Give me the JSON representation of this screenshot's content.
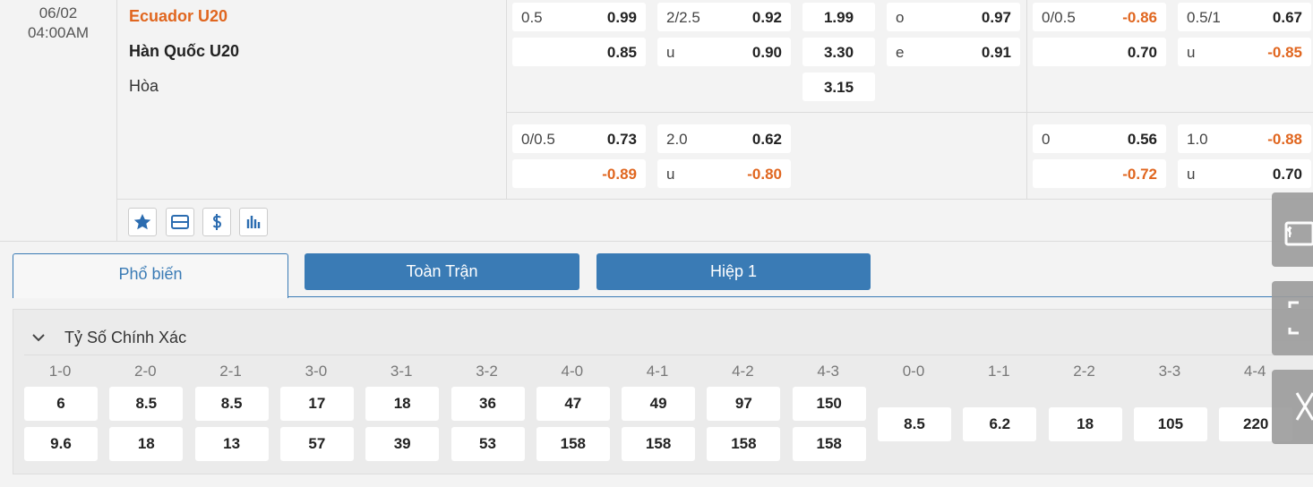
{
  "match": {
    "date": "06/02",
    "time": "04:00AM",
    "home": "Ecuador U20",
    "away": "Hàn Quốc U20",
    "draw": "Hòa"
  },
  "odds": {
    "main": {
      "handicap": [
        {
          "line": "0.5",
          "odds": "0.99"
        },
        {
          "odds": "0.85"
        }
      ],
      "over_under": [
        {
          "line": "2/2.5",
          "odds": "0.92"
        },
        {
          "line": "u",
          "odds": "0.90"
        }
      ],
      "result_1x2": [
        {
          "odds": "1.99"
        },
        {
          "odds": "3.30"
        },
        {
          "odds": "3.15"
        }
      ],
      "odd_even": [
        {
          "line": "o",
          "odds": "0.97"
        },
        {
          "line": "e",
          "odds": "0.91"
        }
      ],
      "h1_handicap": [
        {
          "line": "0/0.5",
          "odds": "-0.86"
        },
        {
          "odds": "0.70"
        }
      ],
      "h1_over_under": [
        {
          "line": "0.5/1",
          "odds": "0.67"
        },
        {
          "line": "u",
          "odds": "-0.85"
        }
      ]
    },
    "alt": {
      "handicap": [
        {
          "line": "0/0.5",
          "odds": "0.73"
        },
        {
          "odds": "-0.89"
        }
      ],
      "over_under": [
        {
          "line": "2.0",
          "odds": "0.62"
        },
        {
          "line": "u",
          "odds": "-0.80"
        }
      ],
      "h1_handicap": [
        {
          "line": "0",
          "odds": "0.56"
        },
        {
          "odds": "-0.72"
        }
      ],
      "h1_over_under": [
        {
          "line": "1.0",
          "odds": "-0.88"
        },
        {
          "line": "u",
          "odds": "0.70"
        }
      ]
    }
  },
  "tabs": [
    "Phổ biến",
    "Toàn Trận",
    "Hiệp 1"
  ],
  "correct_score": {
    "title": "Tỷ Số Chính Xác",
    "scores": [
      {
        "score": "1-0",
        "odds": [
          "6",
          "9.6"
        ]
      },
      {
        "score": "2-0",
        "odds": [
          "8.5",
          "18"
        ]
      },
      {
        "score": "2-1",
        "odds": [
          "8.5",
          "13"
        ]
      },
      {
        "score": "3-0",
        "odds": [
          "17",
          "57"
        ]
      },
      {
        "score": "3-1",
        "odds": [
          "18",
          "39"
        ]
      },
      {
        "score": "3-2",
        "odds": [
          "36",
          "53"
        ]
      },
      {
        "score": "4-0",
        "odds": [
          "47",
          "158"
        ]
      },
      {
        "score": "4-1",
        "odds": [
          "49",
          "158"
        ]
      },
      {
        "score": "4-2",
        "odds": [
          "97",
          "158"
        ]
      },
      {
        "score": "4-3",
        "odds": [
          "150",
          "158"
        ]
      },
      {
        "score": "0-0",
        "odds": [
          "8.5"
        ]
      },
      {
        "score": "1-1",
        "odds": [
          "6.2"
        ]
      },
      {
        "score": "2-2",
        "odds": [
          "18"
        ]
      },
      {
        "score": "3-3",
        "odds": [
          "105"
        ]
      },
      {
        "score": "4-4",
        "odds": [
          "220"
        ]
      }
    ]
  }
}
